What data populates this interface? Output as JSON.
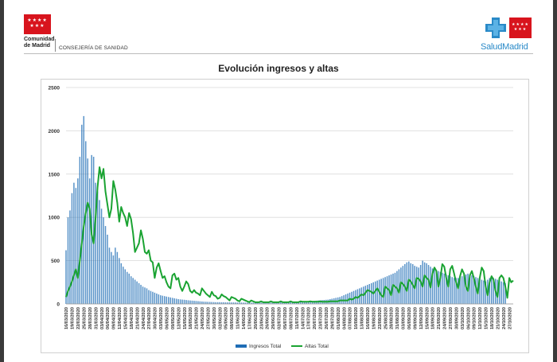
{
  "header": {
    "cm_name": "Comunidad de Madrid",
    "cm_stars": "★★★★ ★★★",
    "department": "CONSEJERÍA DE SANIDAD",
    "salud_logo_text": "SaludMadrid",
    "salud_stars": "★★★★ ★★★"
  },
  "colors": {
    "ingresos": "#1f6db5",
    "altas": "#1aa332",
    "brand_red": "#d8141d",
    "brand_blue": "#2a8ac8"
  },
  "chart_data": {
    "type": "bar",
    "title": "Evolución ingresos y altas",
    "xlabel": "",
    "ylabel": "",
    "ylim": [
      0,
      2500
    ],
    "yticks": [
      0,
      500,
      1000,
      1500,
      2000,
      2500
    ],
    "grid": true,
    "legend_position": "bottom",
    "start_date": "16/03/2020",
    "x_tick_labels": [
      "16/03/2020",
      "19/03/2020",
      "22/03/2020",
      "25/03/2020",
      "28/03/2020",
      "31/03/2020",
      "03/04/2020",
      "06/04/2020",
      "09/04/2020",
      "12/04/2020",
      "15/04/2020",
      "18/04/2020",
      "21/04/2020",
      "24/04/2020",
      "27/04/2020",
      "30/04/2020",
      "03/05/2020",
      "06/05/2020",
      "09/05/2020",
      "12/05/2020",
      "15/05/2020",
      "18/05/2020",
      "21/05/2020",
      "24/05/2020",
      "27/05/2020",
      "30/05/2020",
      "02/06/2020",
      "05/06/2020",
      "08/06/2020",
      "11/06/2020",
      "14/06/2020",
      "17/06/2020",
      "20/06/2020",
      "23/06/2020",
      "26/06/2020",
      "29/06/2020",
      "02/07/2020",
      "05/07/2020",
      "08/07/2020",
      "11/07/2020",
      "14/07/2020",
      "17/07/2020",
      "20/07/2020",
      "23/07/2020",
      "26/07/2020",
      "29/07/2020",
      "01/08/2020",
      "04/08/2020",
      "07/08/2020",
      "10/08/2020",
      "13/08/2020",
      "16/08/2020",
      "19/08/2020",
      "22/08/2020",
      "25/08/2020",
      "28/08/2020",
      "31/08/2020",
      "03/09/2020",
      "06/09/2020",
      "09/09/2020",
      "12/09/2020",
      "15/09/2020",
      "18/09/2020",
      "21/09/2020",
      "24/09/2020",
      "27/09/2020",
      "30/09/2020",
      "03/10/2020",
      "06/10/2020",
      "09/10/2020",
      "12/10/2020",
      "15/10/2020",
      "18/10/2020",
      "21/10/2020",
      "24/10/2020",
      "27/10/2020"
    ],
    "series": [
      {
        "name": "Ingresos Total",
        "type": "bar",
        "color": "#1f6db5",
        "values": [
          620,
          1000,
          1080,
          1280,
          1400,
          1340,
          1450,
          1700,
          2070,
          2170,
          1880,
          1680,
          1450,
          1720,
          1700,
          1400,
          1300,
          1200,
          1100,
          1000,
          900,
          800,
          650,
          600,
          560,
          650,
          600,
          530,
          470,
          430,
          400,
          370,
          350,
          320,
          300,
          280,
          260,
          240,
          220,
          200,
          190,
          180,
          160,
          150,
          140,
          130,
          120,
          110,
          100,
          95,
          90,
          85,
          80,
          75,
          70,
          65,
          60,
          55,
          52,
          50,
          48,
          45,
          42,
          40,
          38,
          36,
          34,
          32,
          30,
          28,
          26,
          25,
          24,
          23,
          22,
          21,
          20,
          20,
          20,
          19,
          19,
          18,
          18,
          18,
          17,
          17,
          17,
          16,
          16,
          16,
          15,
          15,
          15,
          15,
          15,
          15,
          15,
          15,
          15,
          15,
          15,
          15,
          16,
          16,
          16,
          17,
          17,
          18,
          18,
          19,
          20,
          20,
          21,
          22,
          22,
          23,
          24,
          25,
          26,
          27,
          28,
          29,
          30,
          31,
          32,
          34,
          36,
          38,
          40,
          42,
          44,
          46,
          48,
          50,
          55,
          60,
          65,
          70,
          75,
          80,
          90,
          100,
          110,
          120,
          130,
          140,
          150,
          160,
          170,
          180,
          190,
          200,
          210,
          220,
          230,
          240,
          250,
          260,
          270,
          280,
          290,
          300,
          310,
          320,
          330,
          340,
          350,
          360,
          380,
          400,
          420,
          440,
          460,
          480,
          490,
          470,
          460,
          440,
          430,
          420,
          450,
          500,
          480,
          470,
          450,
          430,
          410,
          400,
          390,
          380,
          370,
          360,
          350,
          340,
          330,
          320,
          310,
          300,
          300,
          300,
          310,
          320,
          330,
          340,
          350,
          340,
          330,
          320,
          310,
          300,
          290,
          280,
          270,
          260,
          280,
          300,
          320,
          300,
          290,
          280,
          270,
          260,
          250,
          240
        ]
      },
      {
        "name": "Altas Total",
        "type": "line",
        "color": "#1aa332",
        "values": [
          80,
          150,
          200,
          260,
          330,
          400,
          300,
          500,
          700,
          900,
          1050,
          1170,
          1100,
          800,
          700,
          1000,
          1350,
          1580,
          1450,
          1560,
          1300,
          1150,
          1000,
          1100,
          1420,
          1320,
          1170,
          950,
          1120,
          1050,
          1000,
          900,
          1050,
          980,
          820,
          600,
          650,
          700,
          850,
          750,
          600,
          580,
          620,
          500,
          480,
          300,
          420,
          470,
          380,
          300,
          320,
          250,
          200,
          180,
          330,
          350,
          280,
          300,
          200,
          150,
          200,
          260,
          230,
          150,
          130,
          160,
          130,
          120,
          100,
          180,
          150,
          120,
          100,
          80,
          140,
          100,
          90,
          60,
          70,
          110,
          90,
          80,
          60,
          40,
          80,
          70,
          60,
          40,
          30,
          60,
          50,
          40,
          30,
          20,
          40,
          30,
          20,
          20,
          20,
          30,
          20,
          20,
          20,
          20,
          30,
          20,
          20,
          20,
          20,
          30,
          20,
          20,
          20,
          20,
          30,
          20,
          20,
          20,
          20,
          30,
          25,
          25,
          25,
          25,
          30,
          25,
          25,
          25,
          25,
          30,
          25,
          25,
          25,
          25,
          30,
          30,
          30,
          30,
          30,
          40,
          40,
          40,
          40,
          40,
          60,
          50,
          60,
          80,
          70,
          90,
          110,
          100,
          130,
          160,
          150,
          140,
          120,
          150,
          180,
          140,
          100,
          80,
          200,
          180,
          160,
          100,
          220,
          200,
          180,
          130,
          250,
          230,
          200,
          150,
          280,
          260,
          220,
          180,
          300,
          290,
          260,
          200,
          330,
          300,
          280,
          190,
          350,
          420,
          380,
          200,
          300,
          460,
          430,
          300,
          200,
          400,
          440,
          350,
          250,
          180,
          320,
          400,
          350,
          200,
          150,
          330,
          380,
          300,
          200,
          120,
          300,
          420,
          380,
          200,
          100,
          250,
          320,
          280,
          150,
          80,
          300,
          330,
          300,
          200,
          70,
          300,
          250,
          270
        ]
      }
    ]
  }
}
